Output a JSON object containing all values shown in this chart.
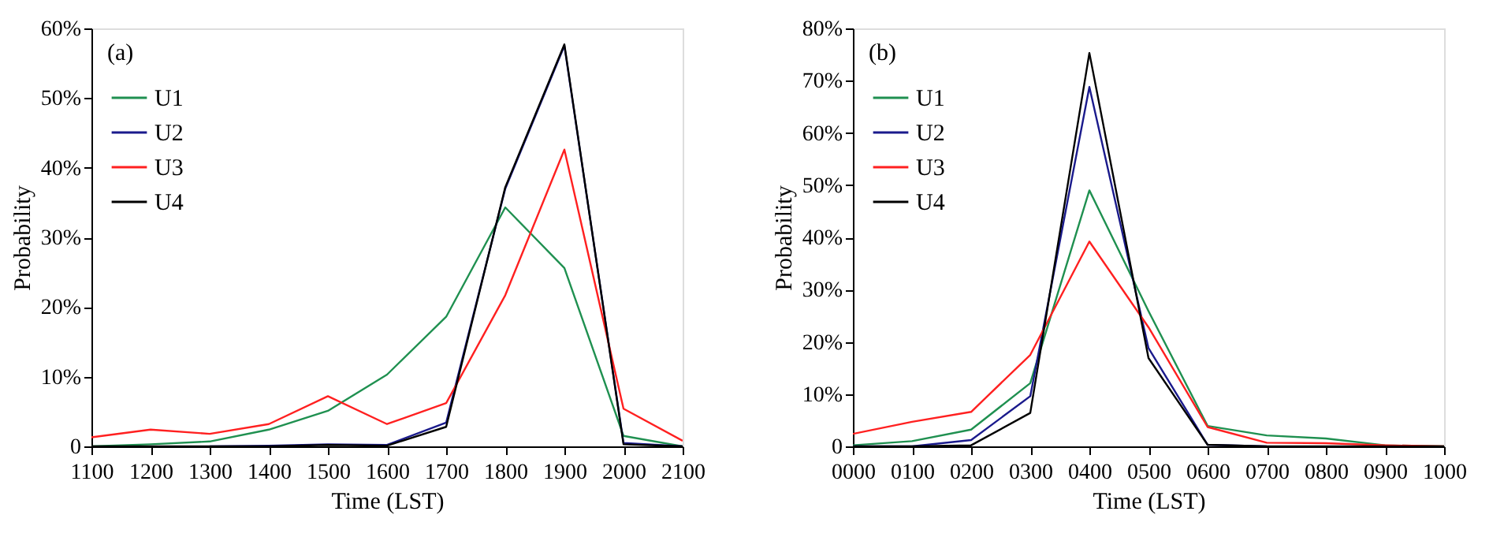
{
  "chart_data": [
    {
      "type": "line",
      "annotations": [
        "(a)"
      ],
      "xlabel": "Time (LST)",
      "ylabel": "Probability",
      "categories": [
        "1100",
        "1200",
        "1300",
        "1400",
        "1500",
        "1600",
        "1700",
        "1800",
        "1900",
        "2000",
        "2100"
      ],
      "series": [
        {
          "name": "U1",
          "color": "#1f9050",
          "values": [
            0,
            0.3,
            0.7,
            2.4,
            5.1,
            10.3,
            18.6,
            34.3,
            25.6,
            1.5,
            0
          ]
        },
        {
          "name": "U2",
          "color": "#1a1a8c",
          "values": [
            null,
            null,
            0,
            0.1,
            0.3,
            0.2,
            3.4,
            37,
            57.5,
            0.5,
            0
          ]
        },
        {
          "name": "U3",
          "color": "#ff2020",
          "values": [
            1.3,
            2.4,
            1.8,
            3.2,
            7.2,
            3.2,
            6.2,
            21.7,
            42.6,
            5.4,
            0.8
          ]
        },
        {
          "name": "U4",
          "color": "#000000",
          "values": [
            0,
            0,
            0,
            0,
            0.2,
            0.1,
            2.8,
            37.2,
            57.7,
            0.3,
            0
          ]
        }
      ],
      "ylim": [
        0,
        60
      ],
      "yticks": [
        {
          "value": 0,
          "label": "0"
        },
        {
          "value": 10,
          "label": "10%"
        },
        {
          "value": 20,
          "label": "20%"
        },
        {
          "value": 30,
          "label": "30%"
        },
        {
          "value": 40,
          "label": "40%"
        },
        {
          "value": 50,
          "label": "50%"
        },
        {
          "value": 60,
          "label": "60%"
        }
      ],
      "grid": false,
      "legend": "top left",
      "marker": "none",
      "line_style": "solid"
    },
    {
      "type": "line",
      "annotations": [
        "(b)"
      ],
      "xlabel": "Time (LST)",
      "ylabel": "Probability",
      "categories": [
        "0000",
        "0100",
        "0200",
        "0300",
        "0400",
        "0500",
        "0600",
        "0700",
        "0800",
        "0900",
        "1000"
      ],
      "series": [
        {
          "name": "U1",
          "color": "#1f9050",
          "values": [
            0.2,
            1.0,
            3.2,
            12.1,
            49.0,
            25.9,
            3.9,
            2.1,
            1.5,
            0.2,
            0
          ]
        },
        {
          "name": "U2",
          "color": "#1a1a8c",
          "values": [
            0,
            0,
            1.2,
            9.6,
            68.8,
            18.8,
            0.3,
            0,
            null,
            null,
            null
          ]
        },
        {
          "name": "U3",
          "color": "#ff2020",
          "values": [
            2.4,
            4.7,
            6.6,
            17.5,
            39.2,
            22.8,
            3.7,
            0.7,
            0.6,
            0.2,
            0
          ]
        },
        {
          "name": "U4",
          "color": "#000000",
          "values": [
            0,
            0,
            0.2,
            6.4,
            75.3,
            16.9,
            0.3,
            0,
            0,
            0,
            0
          ]
        }
      ],
      "ylim": [
        0,
        80
      ],
      "yticks": [
        {
          "value": 0,
          "label": "0"
        },
        {
          "value": 10,
          "label": "10%"
        },
        {
          "value": 20,
          "label": "20%"
        },
        {
          "value": 30,
          "label": "30%"
        },
        {
          "value": 40,
          "label": "40%"
        },
        {
          "value": 50,
          "label": "50%"
        },
        {
          "value": 60,
          "label": "60%"
        },
        {
          "value": 70,
          "label": "70%"
        },
        {
          "value": 80,
          "label": "80%"
        }
      ],
      "grid": false,
      "legend": "top left",
      "marker": "none",
      "line_style": "solid"
    }
  ]
}
